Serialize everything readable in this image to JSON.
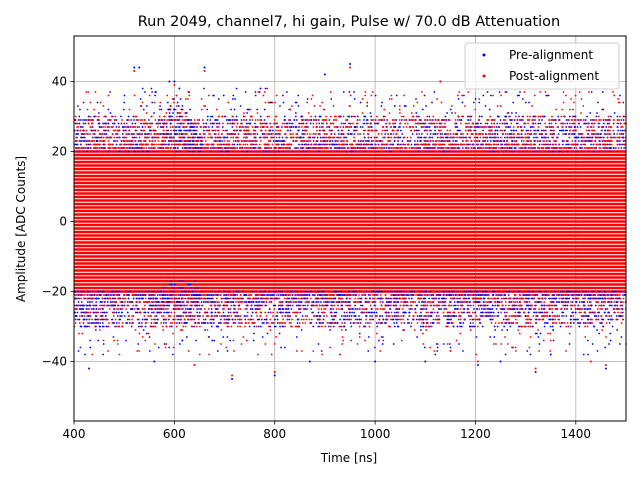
{
  "chart_data": {
    "type": "scatter",
    "title": "Run 2049, channel7, hi gain, Pulse w/ 70.0 dB Attenuation",
    "xlabel": "Time [ns]",
    "ylabel": "Amplitude [ADC Counts]",
    "xlim": [
      400,
      1500
    ],
    "ylim": [
      -57,
      53
    ],
    "xticks": [
      400,
      600,
      800,
      1000,
      1200,
      1400
    ],
    "yticks": [
      -40,
      -20,
      0,
      20,
      40
    ],
    "grid": true,
    "legend_position": "top-right",
    "series": [
      {
        "name": "Pre-alignment",
        "color": "#0000ff",
        "dense_band": [
          -20,
          20
        ],
        "sparse_upper": [
          20,
          30
        ],
        "sparse_lower": [
          -30,
          -20
        ],
        "outliers": [
          [
            520,
            44
          ],
          [
            530,
            44
          ],
          [
            660,
            44
          ],
          [
            900,
            42
          ],
          [
            950,
            45
          ],
          [
            1130,
            40
          ],
          [
            1390,
            40
          ],
          [
            590,
            40
          ],
          [
            600,
            40
          ],
          [
            610,
            38
          ],
          [
            715,
            -45
          ],
          [
            800,
            -44
          ],
          [
            1205,
            -41
          ],
          [
            1320,
            -43
          ],
          [
            1460,
            -42
          ],
          [
            430,
            -42
          ],
          [
            560,
            -40
          ],
          [
            870,
            -40
          ],
          [
            1000,
            -40
          ],
          [
            1100,
            -40
          ],
          [
            1250,
            -40
          ],
          [
            1350,
            -38
          ]
        ],
        "pulse": {
          "center": 605,
          "width": 20,
          "peak": 37,
          "trough": -17
        }
      },
      {
        "name": "Post-alignment",
        "color": "#ff0000",
        "dense_band": [
          -20,
          20
        ],
        "sparse_upper": [
          20,
          30
        ],
        "sparse_lower": [
          -30,
          -20
        ],
        "outliers": [
          [
            520,
            43
          ],
          [
            660,
            43
          ],
          [
            950,
            44
          ],
          [
            1130,
            40
          ],
          [
            1390,
            40
          ],
          [
            600,
            39
          ],
          [
            715,
            -44
          ],
          [
            800,
            -43
          ],
          [
            1205,
            -40
          ],
          [
            1320,
            -42
          ],
          [
            1460,
            -41
          ],
          [
            640,
            -41
          ],
          [
            930,
            -38
          ],
          [
            1150,
            -37
          ],
          [
            1430,
            -40
          ]
        ],
        "pulse": {
          "center": 605,
          "width": 20,
          "peak": 37,
          "trough": -17
        }
      }
    ]
  }
}
